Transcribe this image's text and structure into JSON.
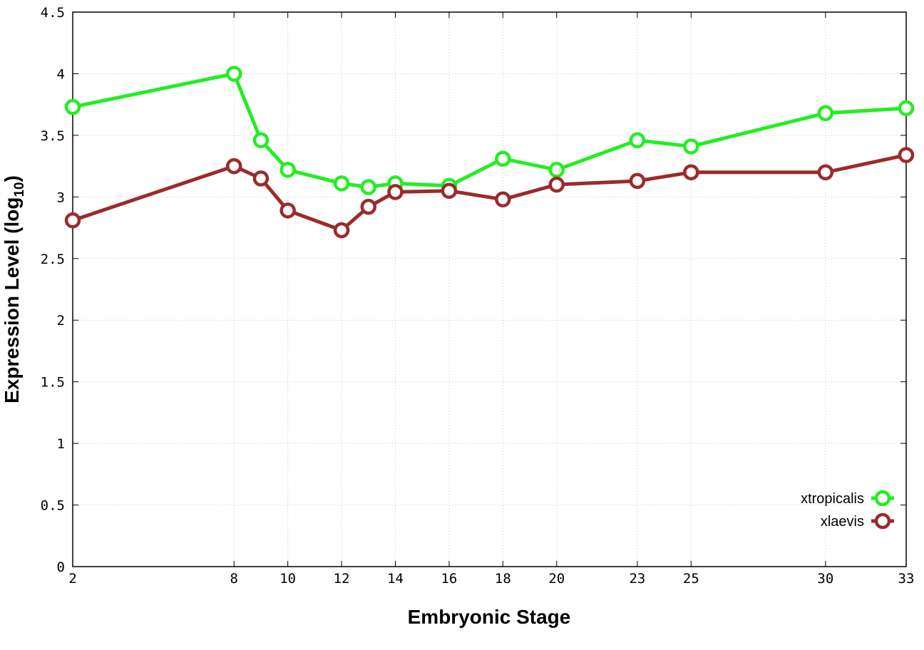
{
  "chart_data": {
    "type": "line",
    "title": "",
    "xlabel": "Embryonic Stage",
    "ylabel_main": "Expression Level (log",
    "ylabel_sub": "10",
    "ylabel_close": ")",
    "x": [
      2,
      8,
      9,
      10,
      12,
      13,
      14,
      16,
      18,
      20,
      23,
      25,
      30,
      33
    ],
    "xticks": [
      "2",
      "8",
      "10",
      "12",
      "14",
      "16",
      "18",
      "20",
      "23",
      "25",
      "30",
      "33"
    ],
    "yticks": [
      "0",
      "0.5",
      "1",
      "1.5",
      "2",
      "2.5",
      "3",
      "3.5",
      "4",
      "4.5"
    ],
    "xlim": [
      2,
      33
    ],
    "ylim": [
      0,
      4.5
    ],
    "grid": true,
    "legend_position": "bottom-right",
    "series": [
      {
        "name": "xtropicalis",
        "color": "#22ee22",
        "values": [
          3.73,
          4.0,
          3.46,
          3.22,
          3.11,
          3.08,
          3.11,
          3.09,
          3.31,
          3.22,
          3.46,
          3.41,
          3.68,
          3.72
        ]
      },
      {
        "name": "xlaevis",
        "color": "#9b2b2b",
        "values": [
          2.81,
          3.25,
          3.15,
          2.89,
          2.73,
          2.92,
          3.04,
          3.05,
          2.98,
          3.1,
          3.13,
          3.2,
          3.2,
          3.34
        ]
      }
    ]
  }
}
